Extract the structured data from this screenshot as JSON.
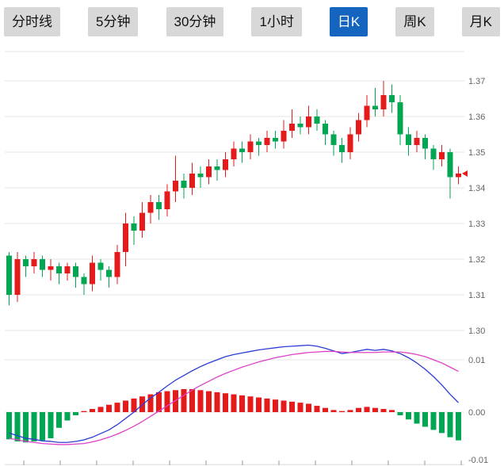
{
  "toolbar": {
    "buttons": [
      {
        "label": "分时线",
        "active": false
      },
      {
        "label": "5分钟",
        "active": false
      },
      {
        "label": "30分钟",
        "active": false
      },
      {
        "label": "1小时",
        "active": false
      },
      {
        "label": "日K",
        "active": true
      },
      {
        "label": "周K",
        "active": false
      },
      {
        "label": "月K",
        "active": false
      }
    ],
    "active_bg": "#1565c0",
    "active_fg": "#ffffff",
    "inactive_bg": "#d8d8d8",
    "inactive_fg": "#111111"
  },
  "chart_data": {
    "type": "candlestick",
    "sub_chart": "macd",
    "price_axis": {
      "labels": [
        "1.37",
        "1.36",
        "1.35",
        "1.34",
        "1.33",
        "1.32",
        "1.31",
        "1.30"
      ],
      "ylim": [
        1.298,
        1.379
      ]
    },
    "macd_axis": {
      "labels": [
        "0.01",
        "0.00",
        "-0.01"
      ],
      "ylim": [
        -0.012,
        0.0145
      ]
    },
    "colors": {
      "up": "#e51a1a",
      "down": "#00a651",
      "dif_line": "#2b3cd5",
      "dea_line": "#e040c8",
      "grid": "#e6e6e6",
      "axis_text": "#666666",
      "tick": "#999999"
    },
    "candle_format": [
      "open",
      "close",
      "low",
      "high"
    ],
    "candles": [
      [
        1.321,
        1.31,
        1.307,
        1.322
      ],
      [
        1.31,
        1.32,
        1.308,
        1.322
      ],
      [
        1.32,
        1.318,
        1.315,
        1.321
      ],
      [
        1.318,
        1.32,
        1.316,
        1.322
      ],
      [
        1.32,
        1.317,
        1.315,
        1.321
      ],
      [
        1.317,
        1.318,
        1.314,
        1.32
      ],
      [
        1.318,
        1.316,
        1.313,
        1.319
      ],
      [
        1.316,
        1.318,
        1.314,
        1.319
      ],
      [
        1.318,
        1.315,
        1.312,
        1.319
      ],
      [
        1.315,
        1.313,
        1.31,
        1.316
      ],
      [
        1.313,
        1.319,
        1.311,
        1.321
      ],
      [
        1.319,
        1.317,
        1.314,
        1.32
      ],
      [
        1.317,
        1.315,
        1.312,
        1.318
      ],
      [
        1.315,
        1.322,
        1.313,
        1.324
      ],
      [
        1.322,
        1.33,
        1.318,
        1.333
      ],
      [
        1.33,
        1.328,
        1.324,
        1.332
      ],
      [
        1.328,
        1.333,
        1.326,
        1.336
      ],
      [
        1.333,
        1.336,
        1.33,
        1.338
      ],
      [
        1.336,
        1.334,
        1.331,
        1.338
      ],
      [
        1.334,
        1.339,
        1.332,
        1.341
      ],
      [
        1.339,
        1.342,
        1.336,
        1.349
      ],
      [
        1.342,
        1.34,
        1.337,
        1.344
      ],
      [
        1.34,
        1.344,
        1.338,
        1.347
      ],
      [
        1.344,
        1.343,
        1.34,
        1.346
      ],
      [
        1.343,
        1.346,
        1.341,
        1.348
      ],
      [
        1.346,
        1.345,
        1.342,
        1.348
      ],
      [
        1.345,
        1.348,
        1.343,
        1.35
      ],
      [
        1.348,
        1.351,
        1.346,
        1.353
      ],
      [
        1.351,
        1.35,
        1.347,
        1.353
      ],
      [
        1.35,
        1.353,
        1.348,
        1.355
      ],
      [
        1.353,
        1.352,
        1.349,
        1.354
      ],
      [
        1.352,
        1.354,
        1.35,
        1.356
      ],
      [
        1.354,
        1.353,
        1.351,
        1.356
      ],
      [
        1.353,
        1.356,
        1.351,
        1.359
      ],
      [
        1.356,
        1.358,
        1.354,
        1.362
      ],
      [
        1.358,
        1.357,
        1.355,
        1.36
      ],
      [
        1.357,
        1.36,
        1.355,
        1.363
      ],
      [
        1.36,
        1.358,
        1.356,
        1.362
      ],
      [
        1.358,
        1.355,
        1.352,
        1.359
      ],
      [
        1.355,
        1.352,
        1.349,
        1.356
      ],
      [
        1.352,
        1.35,
        1.347,
        1.354
      ],
      [
        1.35,
        1.355,
        1.348,
        1.357
      ],
      [
        1.355,
        1.359,
        1.353,
        1.361
      ],
      [
        1.359,
        1.363,
        1.357,
        1.366
      ],
      [
        1.363,
        1.362,
        1.36,
        1.368
      ],
      [
        1.362,
        1.366,
        1.36,
        1.37
      ],
      [
        1.366,
        1.364,
        1.361,
        1.369
      ],
      [
        1.364,
        1.355,
        1.352,
        1.366
      ],
      [
        1.355,
        1.352,
        1.349,
        1.357
      ],
      [
        1.352,
        1.354,
        1.35,
        1.356
      ],
      [
        1.354,
        1.351,
        1.348,
        1.355
      ],
      [
        1.351,
        1.348,
        1.345,
        1.352
      ],
      [
        1.348,
        1.35,
        1.346,
        1.352
      ],
      [
        1.35,
        1.343,
        1.337,
        1.351
      ],
      [
        1.343,
        1.344,
        1.341,
        1.346
      ]
    ],
    "macd": {
      "dif": [
        -0.004,
        -0.0045,
        -0.005,
        -0.0052,
        -0.0055,
        -0.0056,
        -0.0058,
        -0.0058,
        -0.0056,
        -0.0053,
        -0.0048,
        -0.0041,
        -0.0034,
        -0.0024,
        -0.0012,
        0.0,
        0.0014,
        0.0027,
        0.0038,
        0.005,
        0.0061,
        0.007,
        0.0079,
        0.0087,
        0.0094,
        0.01,
        0.0106,
        0.011,
        0.0113,
        0.0116,
        0.0119,
        0.0121,
        0.0123,
        0.0125,
        0.0126,
        0.0127,
        0.0128,
        0.0126,
        0.0122,
        0.0117,
        0.0112,
        0.0114,
        0.0117,
        0.012,
        0.0118,
        0.012,
        0.0117,
        0.0112,
        0.0104,
        0.0094,
        0.0082,
        0.0068,
        0.0052,
        0.0034,
        0.0018
      ],
      "dea": [
        -0.005,
        -0.0053,
        -0.0056,
        -0.0058,
        -0.006,
        -0.0061,
        -0.0062,
        -0.0062,
        -0.0061,
        -0.006,
        -0.0057,
        -0.0053,
        -0.0048,
        -0.0042,
        -0.0035,
        -0.0027,
        -0.0018,
        -0.0008,
        0.0002,
        0.0012,
        0.0022,
        0.0032,
        0.0042,
        0.0051,
        0.0059,
        0.0067,
        0.0074,
        0.008,
        0.0086,
        0.0091,
        0.0096,
        0.01,
        0.0104,
        0.0107,
        0.011,
        0.0112,
        0.0114,
        0.0115,
        0.0116,
        0.0116,
        0.0115,
        0.0114,
        0.0114,
        0.0114,
        0.0114,
        0.0115,
        0.0115,
        0.0115,
        0.0113,
        0.011,
        0.0106,
        0.01,
        0.0094,
        0.0086,
        0.0078
      ],
      "hist": [
        -0.0052,
        -0.0056,
        -0.0058,
        -0.0056,
        -0.0054,
        -0.005,
        -0.003,
        -0.0016,
        -0.0006,
        0.0002,
        0.0006,
        0.001,
        0.0014,
        0.0018,
        0.0022,
        0.0026,
        0.003,
        0.0034,
        0.0038,
        0.004,
        0.0042,
        0.0044,
        0.0044,
        0.0042,
        0.004,
        0.0038,
        0.0036,
        0.0034,
        0.0032,
        0.003,
        0.0028,
        0.0026,
        0.0024,
        0.0022,
        0.002,
        0.0018,
        0.0016,
        0.0012,
        0.0008,
        0.0004,
        0.0002,
        0.0004,
        0.0008,
        0.001,
        0.0008,
        0.0006,
        0.0004,
        -0.0006,
        -0.0014,
        -0.0022,
        -0.0028,
        -0.0034,
        -0.004,
        -0.0048,
        -0.0054
      ]
    },
    "last_close": 1.344
  }
}
